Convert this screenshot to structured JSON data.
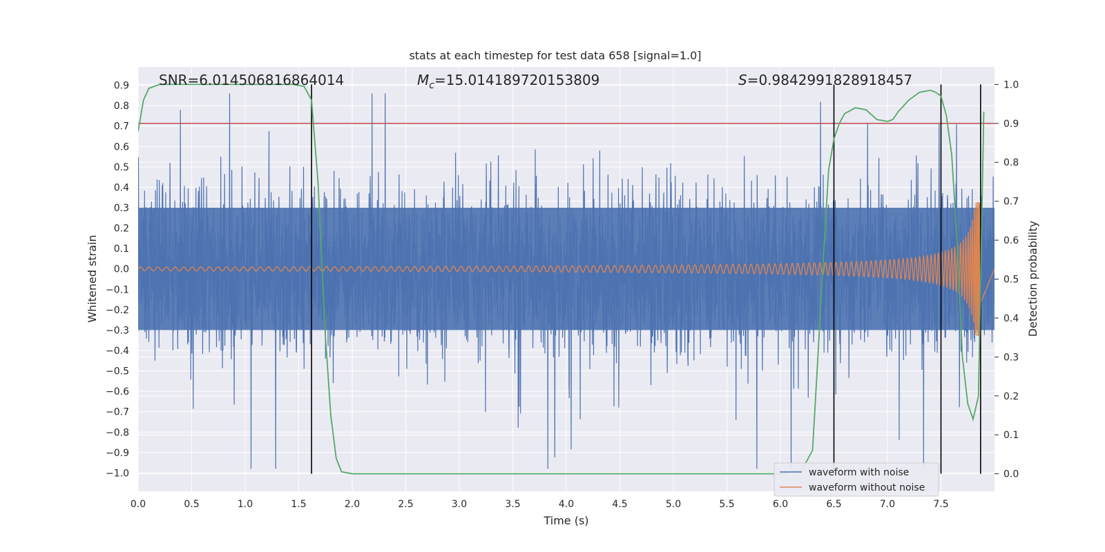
{
  "chart_data": {
    "type": "line",
    "title": "stats at each timestep for test data 658 [signal=1.0]",
    "xlabel": "Time (s)",
    "ylabel": "Whitened strain",
    "y2label": "Detection probability",
    "xlim": [
      0.0,
      8.0
    ],
    "ylim": [
      -1.09,
      0.99
    ],
    "y2lim": [
      -0.045,
      1.045
    ],
    "grid": true,
    "legend_placement": "lower-right",
    "x_ticks": [
      "0.0",
      "0.5",
      "1.0",
      "1.5",
      "2.0",
      "2.5",
      "3.0",
      "3.5",
      "4.0",
      "4.5",
      "5.0",
      "5.5",
      "6.0",
      "6.5",
      "7.0",
      "7.5"
    ],
    "y_ticks": [
      "0.9",
      "0.8",
      "0.7",
      "0.6",
      "0.5",
      "0.4",
      "0.3",
      "0.2",
      "0.1",
      "0.0",
      "−0.1",
      "−0.2",
      "−0.3",
      "−0.4",
      "−0.5",
      "−0.6",
      "−0.7",
      "−0.8",
      "−0.9",
      "−1.0"
    ],
    "y2_ticks": [
      "1.0",
      "0.9",
      "0.8",
      "0.7",
      "0.6",
      "0.5",
      "0.4",
      "0.3",
      "0.2",
      "0.1",
      "0.0"
    ],
    "annotations": {
      "snr": "SNR=6.014506816864014",
      "mc_prefix": "M",
      "mc_sub": "c",
      "mc_value": "=15.014189720153809",
      "s_prefix": "S",
      "s_value": "=0.9842991828918457"
    },
    "threshold": {
      "axis": "y2",
      "value": 0.9,
      "color": "#c44e52"
    },
    "vertical_markers_x": [
      1.62,
      6.5,
      7.5,
      7.87
    ],
    "series": [
      {
        "name": "waveform with noise",
        "axis": "y",
        "color": "#4c72b0",
        "style": "noise",
        "x_range": [
          0.0,
          8.0
        ],
        "typical_amplitude": 0.45,
        "peak_min": -1.0,
        "peak_max": 0.88
      },
      {
        "name": "waveform without noise",
        "axis": "y",
        "color": "#dd8452",
        "style": "chirp",
        "x_range": [
          0.0,
          7.87
        ],
        "merger_peak": 0.33
      },
      {
        "name": "Detection probability",
        "axis": "y2",
        "color": "#55a868",
        "x": [
          0.0,
          0.05,
          0.1,
          0.2,
          0.4,
          0.8,
          1.2,
          1.45,
          1.55,
          1.62,
          1.68,
          1.75,
          1.8,
          1.85,
          1.9,
          2.0,
          2.5,
          3.0,
          4.0,
          5.0,
          6.0,
          6.2,
          6.3,
          6.35,
          6.4,
          6.45,
          6.5,
          6.55,
          6.6,
          6.7,
          6.8,
          6.9,
          7.0,
          7.05,
          7.1,
          7.2,
          7.3,
          7.4,
          7.45,
          7.5,
          7.55,
          7.6,
          7.65,
          7.7,
          7.75,
          7.8,
          7.85,
          7.9
        ],
        "values": [
          0.88,
          0.96,
          0.99,
          1.0,
          1.0,
          1.0,
          1.0,
          1.0,
          0.995,
          0.96,
          0.75,
          0.35,
          0.15,
          0.04,
          0.005,
          0.0,
          0.0,
          0.0,
          0.0,
          0.0,
          0.0,
          0.01,
          0.06,
          0.3,
          0.55,
          0.78,
          0.86,
          0.9,
          0.925,
          0.94,
          0.935,
          0.91,
          0.905,
          0.91,
          0.93,
          0.96,
          0.98,
          0.985,
          0.98,
          0.97,
          0.92,
          0.82,
          0.6,
          0.3,
          0.18,
          0.14,
          0.2,
          0.93
        ]
      }
    ]
  }
}
